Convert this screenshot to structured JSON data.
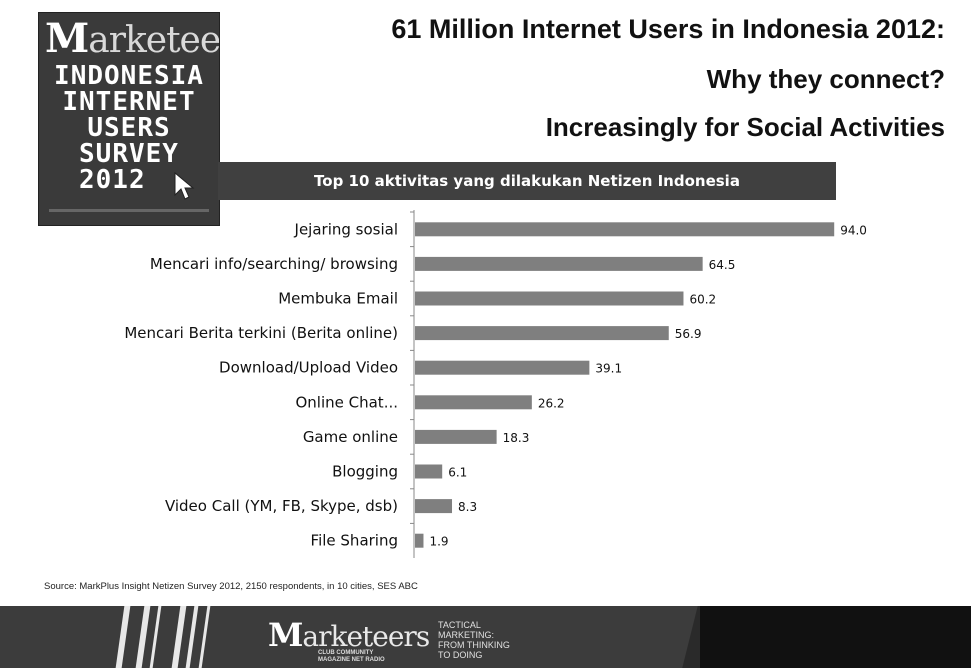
{
  "cover": {
    "brand": "Marketeers",
    "lines": [
      "INDONESIA",
      "INTERNET",
      "USERS",
      "SURVEY",
      "2012"
    ]
  },
  "title": {
    "line1": "61 Million Internet Users in Indonesia 2012:",
    "line2": "Why they connect?",
    "line3": "Increasingly for Social Activities"
  },
  "chart_data": {
    "type": "bar",
    "orientation": "horizontal",
    "title": "Top 10 aktivitas yang dilakukan Netizen Indonesia",
    "categories": [
      "Jejaring sosial",
      "Mencari info/searching/ browsing",
      "Membuka Email",
      "Mencari Berita terkini (Berita online)",
      "Download/Upload Video",
      "Online Chat...",
      "Game online",
      "Blogging",
      "Video Call (YM, FB, Skype, dsb)",
      "File Sharing"
    ],
    "values": [
      94.0,
      64.5,
      60.2,
      56.9,
      39.1,
      26.2,
      18.3,
      6.1,
      8.3,
      1.9
    ],
    "value_labels": [
      "94.0",
      "64.5",
      "60.2",
      "56.9",
      "39.1",
      "26.2",
      "18.3",
      "6.1",
      "8.3",
      "1.9"
    ],
    "xlim": [
      0,
      100
    ],
    "grid": false,
    "bar_color": "#7f7f7f"
  },
  "source": "Source: MarkPlus Insight Netizen Survey 2012, 2150 respondents, in 10 cities, SES ABC",
  "footer": {
    "logo": "Marketeers",
    "logo_sub": [
      "CLUB COMMUNITY",
      "MAGAZINE NET RADIO"
    ],
    "tagline": [
      "TACTICAL",
      "MARKETING:",
      "FROM THINKING",
      "TO DOING"
    ]
  }
}
